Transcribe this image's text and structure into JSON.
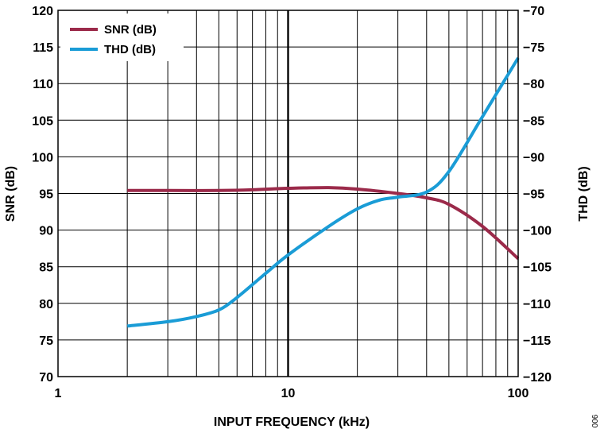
{
  "chart_data": {
    "type": "line",
    "x_scale": "log",
    "xlabel": "INPUT FREQUENCY (kHz)",
    "ylabel_left": "SNR (dB)",
    "ylabel_right": "THD (dB)",
    "xlim": [
      1,
      100
    ],
    "ylim_left": [
      70,
      120
    ],
    "ylim_right": [
      -120,
      -70
    ],
    "x_ticks": [
      "1",
      "10",
      "100"
    ],
    "y_ticks_left": [
      "120",
      "115",
      "110",
      "105",
      "100",
      "95",
      "90",
      "85",
      "80",
      "75",
      "70"
    ],
    "y_ticks_right": [
      "−70",
      "−75",
      "−80",
      "−85",
      "−90",
      "−95",
      "−100",
      "−105",
      "−110",
      "−115",
      "−120"
    ],
    "grid": true,
    "legend": "top-left",
    "figure_id": "006",
    "series": [
      {
        "name": "SNR (dB)",
        "axis": "left",
        "color": "#9b2a4a",
        "x": [
          2,
          3,
          5,
          7,
          10,
          15,
          20,
          30,
          40,
          50,
          70,
          100
        ],
        "y": [
          95.4,
          95.4,
          95.4,
          95.5,
          95.7,
          95.8,
          95.6,
          95.0,
          94.4,
          93.5,
          90.5,
          86.1
        ]
      },
      {
        "name": "THD (dB)",
        "axis": "right",
        "color": "#1a9cd6",
        "x": [
          2,
          3,
          4,
          5,
          6,
          8,
          10,
          15,
          20,
          25,
          30,
          40,
          50,
          70,
          100
        ],
        "y": [
          -113.1,
          -112.5,
          -111.8,
          -110.9,
          -109.2,
          -105.9,
          -103.4,
          -99.5,
          -97.1,
          -95.9,
          -95.5,
          -94.8,
          -92.0,
          -84.5,
          -76.5
        ]
      }
    ]
  }
}
